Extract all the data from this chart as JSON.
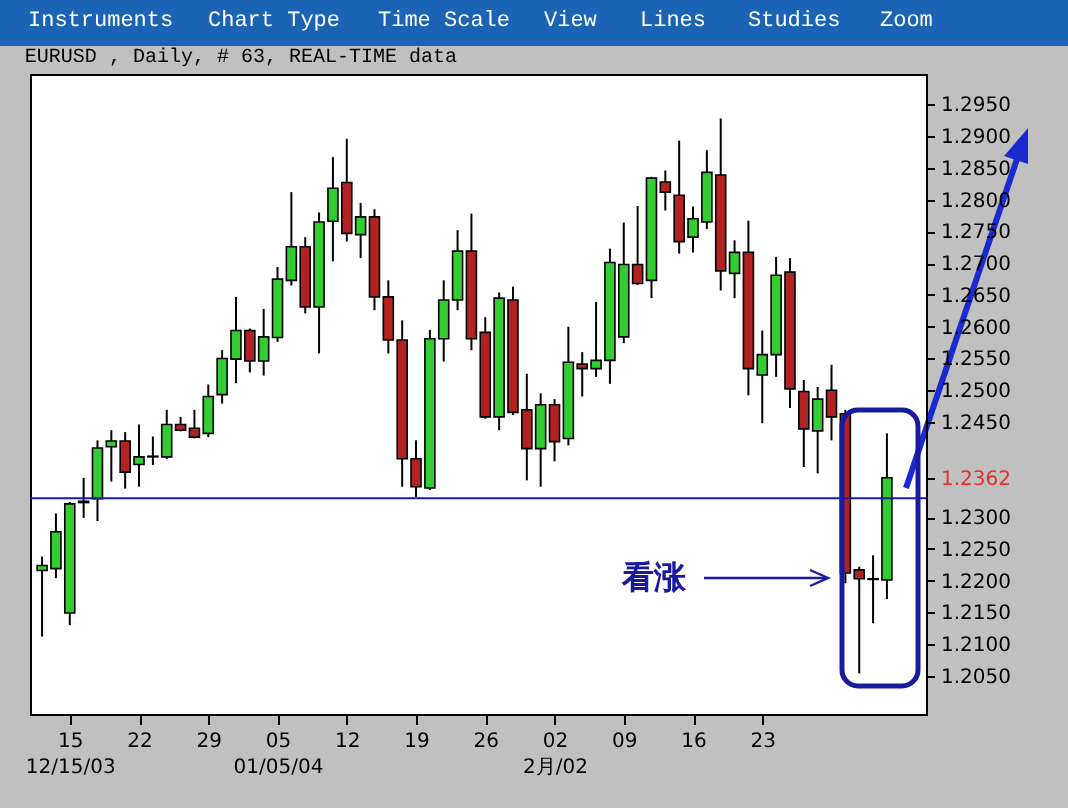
{
  "chart_data": {
    "type": "candlestick",
    "title": "EURUSD , Daily, # 63, REAL-TIME data",
    "annotations": [
      "Instruments",
      "Chart Type",
      "Time Scale",
      "View",
      "Lines",
      "Studies",
      "Zoom",
      "看涨"
    ],
    "categories": [
      null,
      null,
      "15\n12/15/03",
      null,
      null,
      null,
      null,
      "22",
      null,
      null,
      null,
      null,
      "29",
      null,
      null,
      null,
      null,
      "05\n01/05/04",
      null,
      null,
      null,
      null,
      "12",
      null,
      null,
      null,
      null,
      "19",
      null,
      null,
      null,
      null,
      "26",
      null,
      null,
      null,
      null,
      "02\n2月/02",
      null,
      null,
      null,
      null,
      "09",
      null,
      null,
      null,
      null,
      "16",
      null,
      null,
      null,
      null,
      "23",
      null,
      null,
      null,
      null,
      null,
      null,
      null,
      null,
      null
    ],
    "ohlc": [
      [
        1.2216,
        1.2238,
        1.2112,
        1.2224
      ],
      [
        1.2219,
        1.2306,
        1.2204,
        1.2277
      ],
      [
        1.2149,
        1.2324,
        1.213,
        1.2321
      ],
      [
        1.2323,
        1.2362,
        1.2299,
        1.2325
      ],
      [
        1.2329,
        1.2421,
        1.2294,
        1.2409
      ],
      [
        1.2411,
        1.2437,
        1.2356,
        1.242
      ],
      [
        1.242,
        1.2434,
        1.2345,
        1.2371
      ],
      [
        1.2383,
        1.2446,
        1.2348,
        1.2395
      ],
      [
        1.2395,
        1.2427,
        1.2382,
        1.2396
      ],
      [
        1.2395,
        1.2469,
        1.2392,
        1.2446
      ],
      [
        1.2446,
        1.2458,
        1.2435,
        1.2437
      ],
      [
        1.244,
        1.2469,
        1.2424,
        1.2426
      ],
      [
        1.2432,
        1.2509,
        1.2426,
        1.249
      ],
      [
        1.2493,
        1.2563,
        1.2479,
        1.255
      ],
      [
        1.2549,
        1.2647,
        1.2511,
        1.2594
      ],
      [
        1.2594,
        1.2597,
        1.2528,
        1.2546
      ],
      [
        1.2546,
        1.2628,
        1.2523,
        1.2584
      ],
      [
        1.2583,
        1.2694,
        1.2576,
        1.2675
      ],
      [
        1.2673,
        1.2812,
        1.2665,
        1.2726
      ],
      [
        1.2726,
        1.2741,
        1.2621,
        1.2631
      ],
      [
        1.2631,
        1.278,
        1.2558,
        1.2765
      ],
      [
        1.2766,
        1.2867,
        1.2703,
        1.2818
      ],
      [
        1.2827,
        1.2896,
        1.2734,
        1.2747
      ],
      [
        1.2745,
        1.2795,
        1.2708,
        1.2773
      ],
      [
        1.2773,
        1.2785,
        1.2626,
        1.2647
      ],
      [
        1.2647,
        1.2673,
        1.2558,
        1.2579
      ],
      [
        1.2579,
        1.261,
        1.2348,
        1.2392
      ],
      [
        1.2392,
        1.2421,
        1.2332,
        1.2348
      ],
      [
        1.2346,
        1.2595,
        1.2343,
        1.2581
      ],
      [
        1.2581,
        1.2673,
        1.2545,
        1.2642
      ],
      [
        1.2642,
        1.2752,
        1.2626,
        1.2719
      ],
      [
        1.2719,
        1.2778,
        1.2563,
        1.2581
      ],
      [
        1.2591,
        1.2615,
        1.2455,
        1.2458
      ],
      [
        1.2458,
        1.2654,
        1.2437,
        1.2645
      ],
      [
        1.2642,
        1.2663,
        1.2461,
        1.2465
      ],
      [
        1.2469,
        1.2526,
        1.2358,
        1.2408
      ],
      [
        1.2408,
        1.2495,
        1.2348,
        1.2477
      ],
      [
        1.2477,
        1.2486,
        1.2388,
        1.2419
      ],
      [
        1.2424,
        1.26,
        1.2413,
        1.2544
      ],
      [
        1.2541,
        1.256,
        1.249,
        1.2534
      ],
      [
        1.2534,
        1.2639,
        1.2521,
        1.2547
      ],
      [
        1.2547,
        1.2723,
        1.251,
        1.2701
      ],
      [
        1.2584,
        1.2764,
        1.2574,
        1.2698
      ],
      [
        1.2698,
        1.279,
        1.2666,
        1.2668
      ],
      [
        1.2673,
        1.2836,
        1.2645,
        1.2834
      ],
      [
        1.2828,
        1.2846,
        1.2783,
        1.2812
      ],
      [
        1.2807,
        1.2893,
        1.2715,
        1.2734
      ],
      [
        1.2741,
        1.2789,
        1.2717,
        1.277
      ],
      [
        1.2765,
        1.2878,
        1.2754,
        1.2843
      ],
      [
        1.2839,
        1.2928,
        1.2657,
        1.2688
      ],
      [
        1.2684,
        1.2736,
        1.2645,
        1.2717
      ],
      [
        1.2717,
        1.2767,
        1.2492,
        1.2534
      ],
      [
        1.2524,
        1.2594,
        1.2448,
        1.2556
      ],
      [
        1.2556,
        1.271,
        1.2521,
        1.2681
      ],
      [
        1.2686,
        1.2708,
        1.2472,
        1.2502
      ],
      [
        1.2498,
        1.2516,
        1.2379,
        1.2439
      ],
      [
        1.2436,
        1.2505,
        1.2369,
        1.2486
      ],
      [
        1.25,
        1.254,
        1.2421,
        1.2458
      ],
      [
        1.2463,
        1.2469,
        1.2196,
        1.2212
      ],
      [
        1.2217,
        1.2222,
        1.2054,
        1.2203
      ],
      [
        1.2202,
        1.224,
        1.2133,
        1.2203
      ],
      [
        1.2201,
        1.2432,
        1.2171,
        1.2362
      ]
    ],
    "colors": [
      "#33cc33",
      "#33cc33",
      "#33cc33",
      "#33cc33",
      "#33cc33",
      "#33cc33",
      "#b22222",
      "#33cc33",
      "#33cc33",
      "#33cc33",
      "#b22222",
      "#b22222",
      "#33cc33",
      "#33cc33",
      "#33cc33",
      "#b22222",
      "#33cc33",
      "#33cc33",
      "#33cc33",
      "#b22222",
      "#33cc33",
      "#33cc33",
      "#b22222",
      "#33cc33",
      "#b22222",
      "#b22222",
      "#b22222",
      "#b22222",
      "#33cc33",
      "#33cc33",
      "#33cc33",
      "#b22222",
      "#b22222",
      "#33cc33",
      "#b22222",
      "#b22222",
      "#33cc33",
      "#b22222",
      "#33cc33",
      "#b22222",
      "#33cc33",
      "#33cc33",
      "#33cc33",
      "#b22222",
      "#33cc33",
      "#b22222",
      "#b22222",
      "#33cc33",
      "#33cc33",
      "#b22222",
      "#33cc33",
      "#b22222",
      "#33cc33",
      "#33cc33",
      "#b22222",
      "#b22222",
      "#33cc33",
      "#b22222",
      "#b22222",
      "#b22222",
      "#33cc33",
      "#33cc33"
    ],
    "ylim": [
      1.199,
      1.2998
    ],
    "yticks": [
      {
        "value": 1.205,
        "label": "1.2050"
      },
      {
        "value": 1.21,
        "label": "1.2100"
      },
      {
        "value": 1.215,
        "label": "1.2150"
      },
      {
        "value": 1.22,
        "label": "1.2200"
      },
      {
        "value": 1.225,
        "label": "1.2250"
      },
      {
        "value": 1.23,
        "label": "1.2300"
      },
      1.2362,
      {
        "value": 1.245,
        "label": "1.2450"
      },
      {
        "value": 1.25,
        "label": "1.2500"
      },
      {
        "value": 1.255,
        "label": "1.2550"
      },
      {
        "value": 1.26,
        "label": "1.2600"
      },
      {
        "value": 1.265,
        "label": "1.2650"
      },
      {
        "value": 1.27,
        "label": "1.2700"
      },
      {
        "value": 1.275,
        "label": "1.2750"
      },
      {
        "value": 1.28,
        "label": "1.2800"
      },
      {
        "value": 1.285,
        "label": "1.2850"
      },
      {
        "value": 1.29,
        "label": "1.2900"
      },
      {
        "value": 1.295,
        "label": "1.2950"
      }
    ],
    "ref_lines": [
      {
        "axis": "y",
        "value": 1.233,
        "color": "#1a1aa0"
      }
    ],
    "grid": false
  }
}
